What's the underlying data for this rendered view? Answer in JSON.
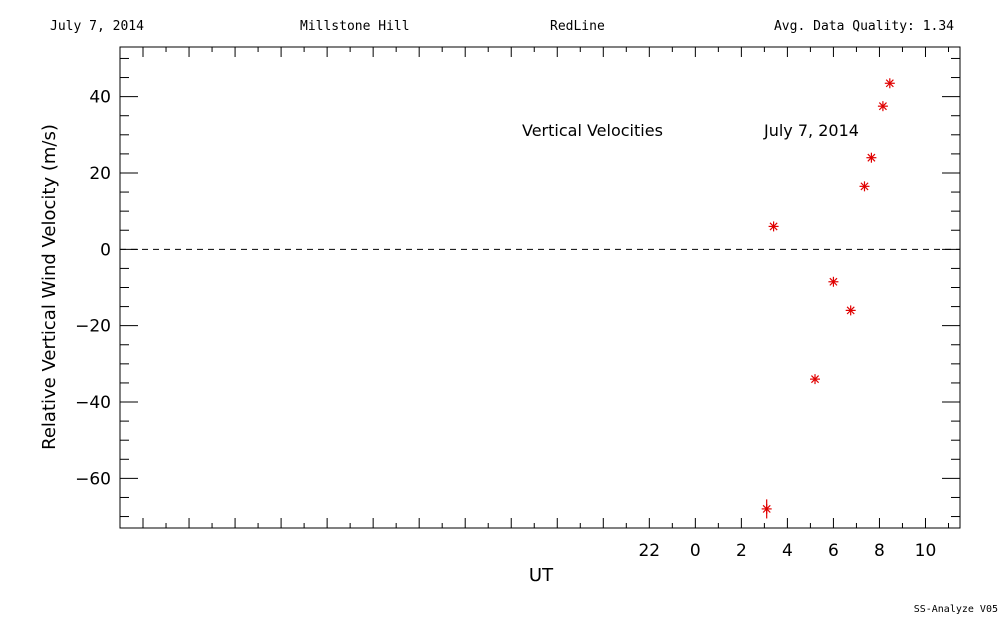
{
  "header": {
    "date": "July 7, 2014",
    "site": "Millstone Hill",
    "instrument": "RedLine",
    "quality": "Avg. Data Quality: 1.34"
  },
  "footer": {
    "software": "SS-Analyze V05"
  },
  "colors": {
    "points": "#e00000",
    "axes": "#000000",
    "background": "#ffffff"
  },
  "chart_data": {
    "type": "scatter",
    "xlabel": "UT",
    "ylabel": "Relative Vertical Wind Velocity (m/s)",
    "annotations": [
      "Vertical Velocities",
      "July 7, 2014"
    ],
    "xlim": [
      -25,
      11.5
    ],
    "ylim": [
      -73,
      53
    ],
    "x_ticks": [
      -26,
      -24,
      -22,
      -20,
      -18,
      -16,
      -14,
      -12,
      -10,
      -8,
      -6,
      -4,
      -2,
      0,
      2,
      4,
      6,
      8,
      10
    ],
    "x_tick_labels": [
      "22",
      "0",
      "2",
      "4",
      "6",
      "8",
      "10"
    ],
    "x_tick_label_values": [
      -2,
      0,
      2,
      4,
      6,
      8,
      10
    ],
    "y_ticks": [
      -60,
      -40,
      -20,
      0,
      20,
      40
    ],
    "y_tick_labels": [
      "−60",
      "−40",
      "−20",
      "0",
      "20",
      "40"
    ],
    "zero_line": "dashed",
    "grid": false,
    "marker": "asterisk",
    "series": [
      {
        "x": [
          3.1,
          3.4,
          5.2,
          6.0,
          6.75,
          7.35,
          7.65,
          8.15,
          8.45
        ],
        "y": [
          -68,
          6,
          -34,
          -8.5,
          -16,
          16.5,
          24,
          37.5,
          43.5
        ],
        "y_err": [
          2.5,
          0,
          0,
          0,
          0,
          0,
          0,
          0,
          0
        ]
      }
    ]
  }
}
